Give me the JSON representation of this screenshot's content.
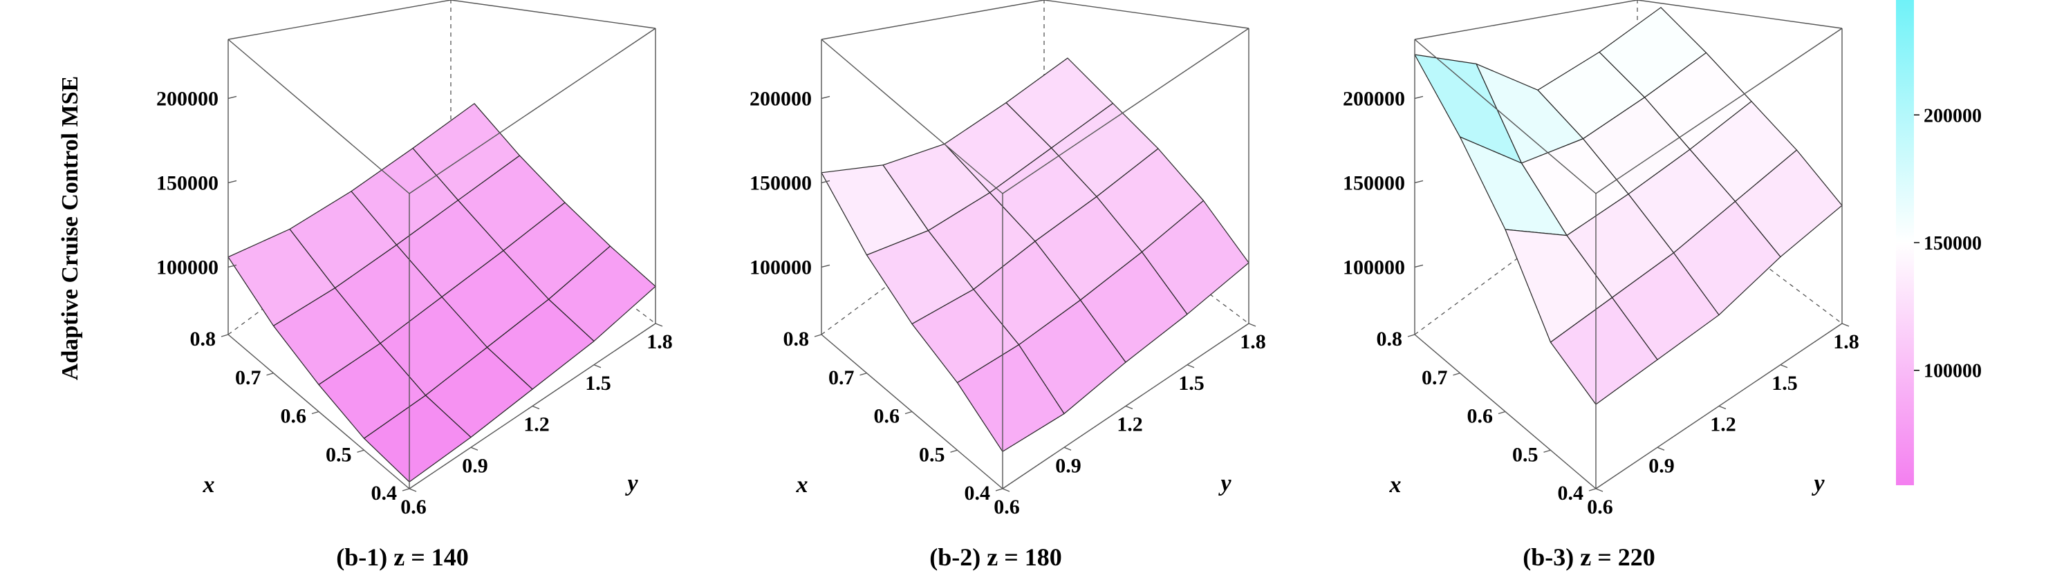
{
  "figure": {
    "ylabel": "Adaptive Cruise Control MSE",
    "colorbar": {
      "ticks": [
        "200000",
        "150000",
        "100000"
      ],
      "tick_values": [
        200000,
        150000,
        100000
      ],
      "range": [
        55000,
        245000
      ],
      "colors": [
        "#f47ff0",
        "#ffffff",
        "#70f2f8"
      ]
    }
  },
  "chart_data": [
    {
      "type": "surface",
      "title": "(b-1) z = 140",
      "xlabel": "x",
      "ylabel": "y",
      "zlabel": "Adaptive Cruise Control MSE",
      "x": [
        0.4,
        0.5,
        0.6,
        0.7,
        0.8
      ],
      "y": [
        0.6,
        0.9,
        1.2,
        1.5,
        1.8
      ],
      "x_ticks": [
        "0.4",
        "0.5",
        "0.6",
        "0.7",
        "0.8"
      ],
      "y_ticks": [
        "0.6",
        "0.9",
        "1.2",
        "1.5",
        "1.8"
      ],
      "z_ticks": [
        "100000",
        "150000",
        "200000"
      ],
      "zlim": [
        60000,
        235000
      ],
      "z": [
        [
          64000,
          66000,
          70000,
          74000,
          82000
        ],
        [
          67000,
          68000,
          72000,
          76000,
          83000
        ],
        [
          76000,
          76000,
          79000,
          82000,
          86000
        ],
        [
          88000,
          86000,
          87000,
          89000,
          91000
        ],
        [
          106000,
          98000,
          96000,
          97000,
          99000
        ]
      ]
    },
    {
      "type": "surface",
      "title": "(b-2) z = 180",
      "xlabel": "x",
      "ylabel": "y",
      "zlabel": "Adaptive Cruise Control MSE",
      "x": [
        0.4,
        0.5,
        0.6,
        0.7,
        0.8
      ],
      "y": [
        0.6,
        0.9,
        1.2,
        1.5,
        1.8
      ],
      "x_ticks": [
        "0.4",
        "0.5",
        "0.6",
        "0.7",
        "0.8"
      ],
      "y_ticks": [
        "0.6",
        "0.9",
        "1.2",
        "1.5",
        "1.8"
      ],
      "z_ticks": [
        "100000",
        "150000",
        "200000"
      ],
      "zlim": [
        60000,
        235000
      ],
      "z": [
        [
          82000,
          80000,
          86000,
          90000,
          96000
        ],
        [
          100000,
          98000,
          100000,
          104000,
          110000
        ],
        [
          112000,
          108000,
          112000,
          114000,
          118000
        ],
        [
          130000,
          120000,
          118000,
          120000,
          122000
        ],
        [
          156000,
          136000,
          124000,
          124000,
          126000
        ]
      ]
    },
    {
      "type": "surface",
      "title": "(b-3) z = 220",
      "xlabel": "x",
      "ylabel": "y",
      "zlabel": "Adaptive Cruise Control MSE",
      "x": [
        0.4,
        0.5,
        0.6,
        0.7,
        0.8
      ],
      "y": [
        0.6,
        0.9,
        1.2,
        1.5,
        1.8
      ],
      "x_ticks": [
        "0.4",
        "0.5",
        "0.6",
        "0.7",
        "0.8"
      ],
      "y_ticks": [
        "0.6",
        "0.9",
        "1.2",
        "1.5",
        "1.8"
      ],
      "z_ticks": [
        "100000",
        "150000",
        "200000"
      ],
      "zlim": [
        60000,
        235000
      ],
      "z": [
        [
          110000,
          112000,
          114000,
          124000,
          130000
        ],
        [
          124000,
          126000,
          128000,
          134000,
          140000
        ],
        [
          168000,
          140000,
          140000,
          142000,
          146000
        ],
        [
          200000,
          160000,
          150000,
          150000,
          152000
        ],
        [
          226000,
          196000,
          156000,
          154000,
          156000
        ]
      ]
    }
  ]
}
